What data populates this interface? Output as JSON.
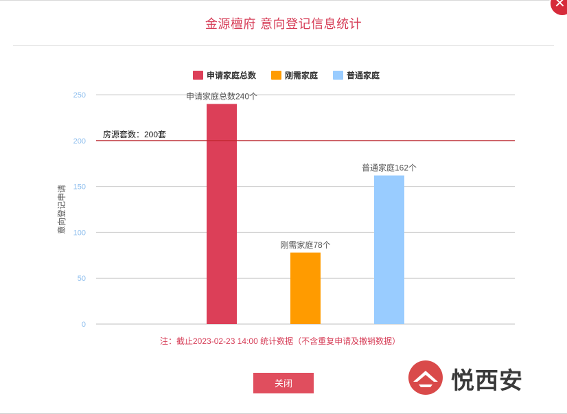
{
  "dialog": {
    "title": "金源檀府 意向登记信息统计",
    "close_icon_glyph": "✕",
    "note": "注：截止2023-02-23 14:00 统计数据（不含重复申请及撤销数据）",
    "close_button_label": "关闭"
  },
  "watermark": {
    "text": "悦西安"
  },
  "chart_data": {
    "type": "bar",
    "categories": [
      "申请家庭总数",
      "刚需家庭",
      "普通家庭"
    ],
    "values": [
      240,
      78,
      162
    ],
    "data_labels": [
      "申请家庭总数240个",
      "刚需家庭78个",
      "普通家庭162个"
    ],
    "legend": [
      "申请家庭总数",
      "刚需家庭",
      "普通家庭"
    ],
    "colors": [
      "#dc3f58",
      "#ff9b00",
      "#99ccff"
    ],
    "ylabel": "意向登记申请",
    "xlabel": "",
    "ylim": [
      0,
      250
    ],
    "yticks": [
      0,
      50,
      100,
      150,
      200,
      250
    ],
    "grid": true,
    "legend_position": "top-center",
    "reference_line": {
      "value": 200,
      "label": "房源套数：200套",
      "color": "#c0262e"
    }
  }
}
